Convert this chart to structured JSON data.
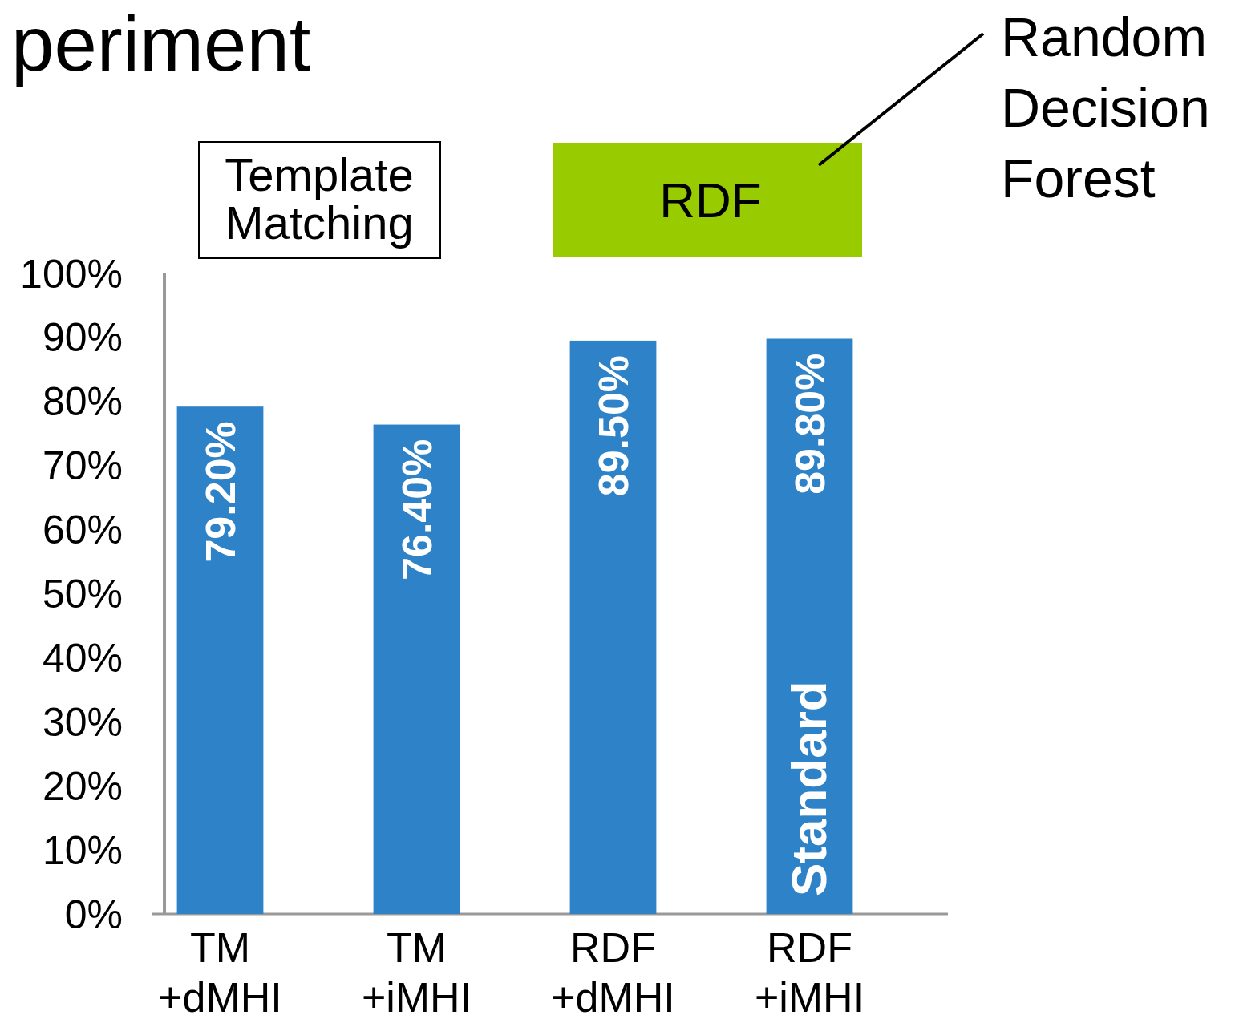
{
  "chart_data": {
    "type": "bar",
    "title": "periment",
    "categories": [
      "TM +dMHI",
      "TM +iMHI",
      "RDF +dMHI",
      "RDF +iMHI"
    ],
    "values": [
      79.2,
      76.4,
      89.5,
      89.8
    ],
    "value_labels": [
      "79.20%",
      "76.40%",
      "89.50%",
      "89.80%"
    ],
    "color": "#2e83c8",
    "ylim": [
      0,
      100
    ],
    "yticks": [
      {
        "value": 0,
        "label": "0%"
      },
      {
        "value": 10,
        "label": "10%"
      },
      {
        "value": 20,
        "label": "20%"
      },
      {
        "value": 30,
        "label": "30%"
      },
      {
        "value": 40,
        "label": "40%"
      },
      {
        "value": 50,
        "label": "50%"
      },
      {
        "value": 60,
        "label": "60%"
      },
      {
        "value": 70,
        "label": "70%"
      },
      {
        "value": 80,
        "label": "80%"
      },
      {
        "value": 90,
        "label": "90%"
      },
      {
        "value": 100,
        "label": "100%"
      }
    ],
    "grid": false,
    "annotations": [
      "Template Matching",
      "RDF",
      "Random Decision Forest",
      "Standard"
    ]
  }
}
